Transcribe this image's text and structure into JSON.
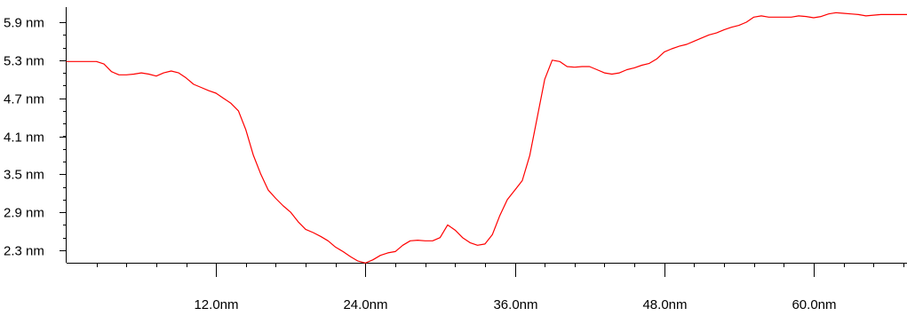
{
  "chart_data": {
    "type": "line",
    "title": "",
    "xlabel": "",
    "ylabel": "",
    "xlim": [
      0,
      67.5
    ],
    "ylim": [
      2.15,
      6.0
    ],
    "grid": false,
    "legend": "none",
    "x_ticks": [
      {
        "value": 12,
        "label": "12.0nm"
      },
      {
        "value": 24,
        "label": "24.0nm"
      },
      {
        "value": 36,
        "label": "36.0nm"
      },
      {
        "value": 48,
        "label": "48.0nm"
      },
      {
        "value": 60,
        "label": "60.0nm"
      }
    ],
    "y_ticks": [
      {
        "value": 2.3,
        "label": "2.3 nm"
      },
      {
        "value": 2.9,
        "label": "2.9 nm"
      },
      {
        "value": 3.5,
        "label": "3.5 nm"
      },
      {
        "value": 4.1,
        "label": "4.1 nm"
      },
      {
        "value": 4.7,
        "label": "4.7 nm"
      },
      {
        "value": 5.3,
        "label": "5.3 nm"
      },
      {
        "value": 5.9,
        "label": "5.9 nm"
      }
    ],
    "series": [
      {
        "color": "#ff0000",
        "x": [
          0.0,
          2.4,
          3.0,
          3.6,
          4.2,
          4.8,
          5.4,
          6.0,
          6.6,
          7.2,
          7.8,
          8.4,
          9.0,
          9.6,
          10.2,
          10.8,
          11.4,
          12.0,
          12.6,
          13.2,
          13.8,
          14.4,
          15.0,
          15.6,
          16.2,
          16.8,
          17.4,
          18.0,
          18.6,
          19.2,
          19.8,
          20.4,
          21.0,
          21.6,
          22.2,
          22.8,
          23.4,
          24.0,
          24.6,
          25.2,
          25.8,
          26.4,
          27.0,
          27.6,
          28.2,
          28.8,
          29.4,
          30.0,
          30.6,
          31.2,
          31.8,
          32.4,
          33.0,
          33.6,
          34.2,
          34.8,
          35.4,
          36.0,
          36.6,
          37.2,
          37.8,
          38.4,
          39.0,
          39.6,
          40.2,
          40.8,
          41.4,
          42.0,
          42.6,
          43.2,
          43.8,
          44.4,
          45.0,
          45.6,
          46.2,
          46.8,
          47.4,
          48.0,
          48.6,
          49.2,
          49.8,
          50.4,
          51.0,
          51.6,
          52.2,
          52.8,
          53.4,
          54.0,
          54.6,
          55.2,
          55.8,
          56.4,
          57.0,
          57.6,
          58.2,
          58.8,
          59.4,
          60.0,
          60.6,
          61.2,
          61.8,
          62.4,
          63.0,
          63.6,
          64.2,
          64.8,
          65.4,
          66.0,
          66.6,
          67.2,
          67.5
        ],
        "values": [
          5.28,
          5.28,
          5.24,
          5.12,
          5.07,
          5.07,
          5.08,
          5.1,
          5.08,
          5.05,
          5.1,
          5.13,
          5.1,
          5.02,
          4.92,
          4.87,
          4.82,
          4.78,
          4.7,
          4.62,
          4.5,
          4.2,
          3.8,
          3.5,
          3.25,
          3.12,
          3.0,
          2.9,
          2.75,
          2.63,
          2.58,
          2.52,
          2.45,
          2.35,
          2.28,
          2.2,
          2.13,
          2.1,
          2.15,
          2.22,
          2.26,
          2.28,
          2.38,
          2.45,
          2.46,
          2.45,
          2.45,
          2.5,
          2.7,
          2.62,
          2.5,
          2.42,
          2.38,
          2.4,
          2.55,
          2.85,
          3.1,
          3.25,
          3.4,
          3.8,
          4.4,
          5.0,
          5.3,
          5.28,
          5.2,
          5.19,
          5.2,
          5.2,
          5.15,
          5.1,
          5.08,
          5.1,
          5.15,
          5.18,
          5.22,
          5.25,
          5.32,
          5.43,
          5.48,
          5.52,
          5.55,
          5.6,
          5.65,
          5.7,
          5.73,
          5.78,
          5.82,
          5.85,
          5.9,
          5.98,
          6.0,
          5.98,
          5.98,
          5.98,
          5.98,
          6.0,
          5.99,
          5.97,
          5.99,
          6.03,
          6.05,
          6.04,
          6.03,
          6.02,
          6.0,
          6.01,
          6.02,
          6.02,
          6.02,
          6.02,
          6.02
        ]
      }
    ]
  }
}
